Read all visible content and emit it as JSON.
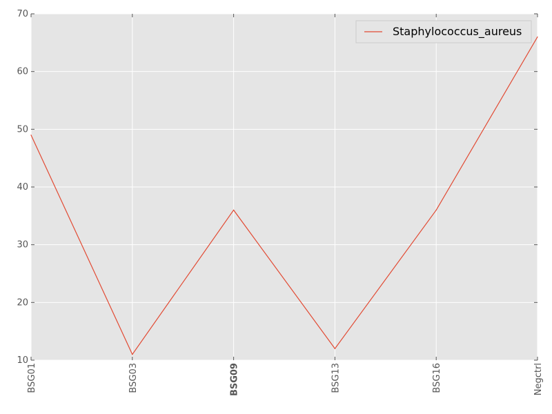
{
  "chart_data": {
    "type": "line",
    "title": "",
    "xlabel": "",
    "ylabel": "",
    "categories": [
      "BSG01",
      "BSG03",
      "BSG09",
      "BSG13",
      "BSG16",
      "Negctrl"
    ],
    "highlighted_category": "BSG09",
    "highlight_color": "#ff0000",
    "series": [
      {
        "name": "Staphylococcus_aureus",
        "color": "#e24a33",
        "values": [
          49,
          11,
          36,
          12,
          36,
          66
        ]
      }
    ],
    "ylim": [
      10,
      70
    ],
    "yticks": [
      10,
      20,
      30,
      40,
      50,
      60,
      70
    ],
    "grid": true,
    "legend_position": "top-right",
    "background_color": "#e5e5e5"
  }
}
